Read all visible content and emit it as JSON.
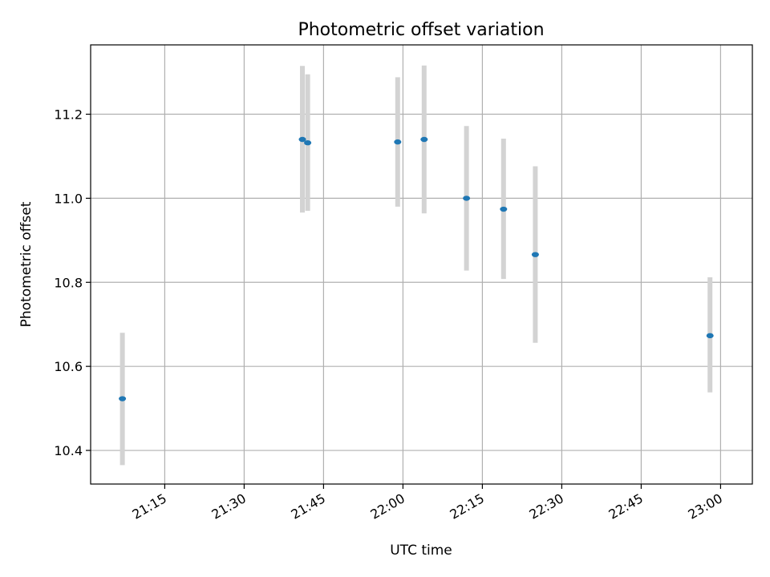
{
  "chart_data": {
    "type": "scatter",
    "title": "Photometric offset variation",
    "xlabel": "UTC time",
    "ylabel": "Photometric offset",
    "grid": true,
    "xlim": [
      "21:01",
      "23:06"
    ],
    "ylim": [
      10.32,
      11.365
    ],
    "xticks": [
      "21:15",
      "21:30",
      "21:45",
      "22:00",
      "22:15",
      "22:30",
      "22:45",
      "23:00"
    ],
    "yticks": [
      "10.4",
      "10.6",
      "10.8",
      "11.0",
      "11.2"
    ],
    "point_color": "#1f77b4",
    "errorbar_color": "#d3d3d3",
    "points": [
      {
        "x": "21:07",
        "y": 10.523,
        "low": 10.365,
        "high": 10.68
      },
      {
        "x": "21:41",
        "y": 11.14,
        "low": 10.966,
        "high": 11.315
      },
      {
        "x": "21:42",
        "y": 11.132,
        "low": 10.97,
        "high": 11.295
      },
      {
        "x": "21:59",
        "y": 11.134,
        "low": 10.98,
        "high": 11.288
      },
      {
        "x": "22:04",
        "y": 11.14,
        "low": 10.964,
        "high": 11.316
      },
      {
        "x": "22:12",
        "y": 11.0,
        "low": 10.828,
        "high": 11.172
      },
      {
        "x": "22:19",
        "y": 10.974,
        "low": 10.808,
        "high": 11.142
      },
      {
        "x": "22:25",
        "y": 10.866,
        "low": 10.656,
        "high": 11.076
      },
      {
        "x": "22:58",
        "y": 10.673,
        "low": 10.538,
        "high": 10.812
      }
    ]
  }
}
